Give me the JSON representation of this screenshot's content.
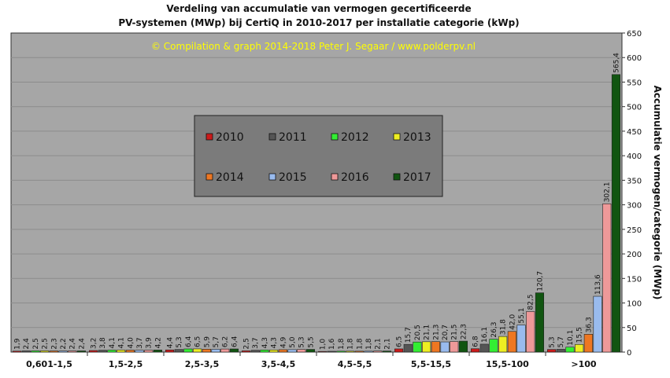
{
  "chart_data": {
    "type": "bar",
    "title_lines": [
      "Verdeling  van  accumulatie  van  vermogen  gecertificeerde",
      "PV-systemen  (MWp)  bij  CertiQ  in  2010-2017  per  installatie  categorie  (kWp)"
    ],
    "copyright": "©  Compilation  &  graph  2014-2018  Peter  J.  Segaar  /  www.polderpv.nl",
    "ylabel": "Accumulatie  vermogen/categorie  (MWp)",
    "xlabel": "",
    "ylim": [
      0,
      650
    ],
    "yticks": [
      "0",
      "50",
      "100",
      "150",
      "200",
      "250",
      "300",
      "350",
      "400",
      "450",
      "500",
      "550",
      "600",
      "650"
    ],
    "grid": true,
    "legend_position": "center-left",
    "categories": [
      "0,601-1,5",
      "1,5-2,5",
      "2,5-3,5",
      "3,5-4,5",
      "4,5-5,5",
      "5,5-15,5",
      "15,5-100",
      ">100"
    ],
    "series": [
      {
        "name": "2010",
        "color": "#cc1a1a",
        "values": [
          1.9,
          3.2,
          4.4,
          2.5,
          1.0,
          6.5,
          6.8,
          5.3
        ],
        "labels": [
          "1,9",
          "3,2",
          "4,4",
          "2,5",
          "1,0",
          "6,5",
          "6,8",
          "5,3"
        ]
      },
      {
        "name": "2011",
        "color": "#555555",
        "values": [
          2.4,
          3.8,
          5.3,
          3.7,
          1.6,
          15.7,
          16.1,
          5.7
        ],
        "labels": [
          "2,4",
          "3,8",
          "5,3",
          "3,7",
          "1,6",
          "15,7",
          "16,1",
          "5,7"
        ]
      },
      {
        "name": "2012",
        "color": "#33ee33",
        "values": [
          2.5,
          4.1,
          6.4,
          4.3,
          1.8,
          20.5,
          26.3,
          10.1
        ],
        "labels": [
          "2,5",
          "4,1",
          "6,4",
          "4,3",
          "1,8",
          "20,5",
          "26,3",
          "10,1"
        ]
      },
      {
        "name": "2013",
        "color": "#eeee22",
        "values": [
          2.5,
          4.1,
          6.5,
          4.3,
          1.8,
          21.1,
          31.8,
          15.5
        ],
        "labels": [
          "2,5",
          "4,1",
          "6,5",
          "4,3",
          "1,8",
          "21,1",
          "31,8",
          "15,5"
        ]
      },
      {
        "name": "2014",
        "color": "#ee7722",
        "values": [
          2.3,
          4.0,
          5.9,
          4.9,
          1.8,
          21.3,
          42.0,
          36.3
        ],
        "labels": [
          "2,3",
          "4,0",
          "5,9",
          "4,9",
          "1,8",
          "21,3",
          "42,0",
          "36,3"
        ]
      },
      {
        "name": "2015",
        "color": "#99bbee",
        "values": [
          2.2,
          3.7,
          5.7,
          5.0,
          1.8,
          20.7,
          55.1,
          113.6
        ],
        "labels": [
          "2,2",
          "3,7",
          "5,7",
          "5,0",
          "1,8",
          "20,7",
          "55,1",
          "113,6"
        ]
      },
      {
        "name": "2016",
        "color": "#ee9999",
        "values": [
          2.4,
          3.9,
          6.2,
          5.3,
          2.1,
          21.5,
          82.5,
          302.1
        ],
        "labels": [
          "2,4",
          "3,9",
          "6,2",
          "5,3",
          "2,1",
          "21,5",
          "82,5",
          "302,1"
        ]
      },
      {
        "name": "2017",
        "color": "#115511",
        "values": [
          2.4,
          4.2,
          6.4,
          5.5,
          2.1,
          22.3,
          120.7,
          565.4
        ],
        "labels": [
          "2,4",
          "4,2",
          "6,4",
          "5,5",
          "2,1",
          "22,3",
          "120,7",
          "565,4"
        ]
      }
    ]
  }
}
